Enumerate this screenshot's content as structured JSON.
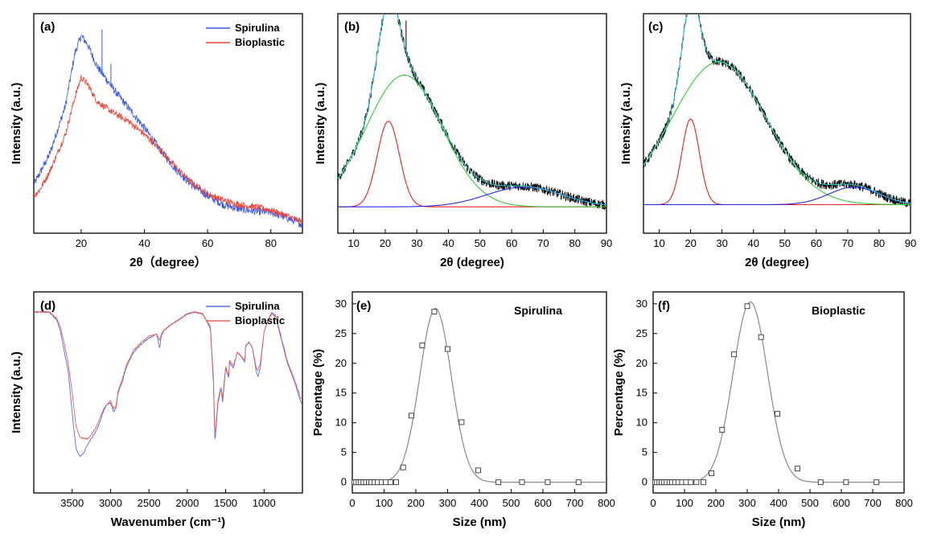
{
  "chart_data": [
    {
      "panel": "(a)",
      "type": "line",
      "xlabel": "2θ（degree）",
      "ylabel": "Intensity (a.u.)",
      "xlim": [
        5,
        90
      ],
      "xticks": [
        20,
        40,
        60,
        80
      ],
      "yticks_shown": false,
      "legend": "top-right",
      "series": [
        {
          "name": "Spirulina",
          "color": "#3a56e8",
          "noise": 0.018,
          "spikes": [
            [
              26.6,
              0.2
            ],
            [
              29.4,
              0.1
            ]
          ],
          "x": [
            5,
            10,
            15,
            18,
            20,
            22,
            25,
            30,
            35,
            40,
            45,
            50,
            55,
            60,
            65,
            70,
            75,
            80,
            85,
            90
          ],
          "y": [
            0.22,
            0.36,
            0.58,
            0.82,
            0.9,
            0.86,
            0.76,
            0.66,
            0.57,
            0.48,
            0.38,
            0.29,
            0.22,
            0.17,
            0.13,
            0.11,
            0.1,
            0.095,
            0.07,
            0.04
          ]
        },
        {
          "name": "Bioplastic",
          "color": "#e8473a",
          "noise": 0.015,
          "spikes": [],
          "x": [
            5,
            7,
            10,
            15,
            18,
            20,
            22,
            25,
            30,
            35,
            40,
            45,
            50,
            55,
            60,
            65,
            70,
            75,
            80,
            85,
            90
          ],
          "y": [
            0.17,
            0.2,
            0.28,
            0.45,
            0.62,
            0.71,
            0.68,
            0.6,
            0.55,
            0.51,
            0.45,
            0.38,
            0.3,
            0.23,
            0.18,
            0.15,
            0.13,
            0.12,
            0.105,
            0.08,
            0.05
          ]
        }
      ]
    },
    {
      "panel": "(b)",
      "type": "line",
      "xlabel": "2θ (degree)",
      "ylabel": "Intensity (a.u.)",
      "xlim": [
        5,
        90
      ],
      "xticks": [
        10,
        20,
        30,
        40,
        50,
        60,
        70,
        80,
        90
      ],
      "yticks_shown": false,
      "baseline": 0.12,
      "experimental": {
        "color": "#000000",
        "noise": 0.022,
        "spikes": [
          [
            26.6,
            0.14
          ]
        ]
      },
      "fit_color": "#2ee8e8",
      "peaks": [
        {
          "color": "#e82020",
          "center": 21,
          "height": 0.39,
          "sigma": 3.5
        },
        {
          "color": "#33cc33",
          "center": 26,
          "height": 0.6,
          "sigma": 12
        },
        {
          "color": "#2626e8",
          "center": 64,
          "height": 0.09,
          "sigma": 12
        }
      ]
    },
    {
      "panel": "(c)",
      "type": "line",
      "xlabel": "2θ (degree)",
      "ylabel": "Intensity (a.u.)",
      "xlim": [
        5,
        90
      ],
      "xticks": [
        10,
        20,
        30,
        40,
        50,
        60,
        70,
        80,
        90
      ],
      "yticks_shown": false,
      "baseline": 0.13,
      "experimental": {
        "color": "#000000",
        "noise": 0.022,
        "spikes": []
      },
      "fit_color": "#2ee8e8",
      "peaks": [
        {
          "color": "#e82020",
          "center": 20,
          "height": 0.39,
          "sigma": 2.8
        },
        {
          "color": "#33cc33",
          "center": 29,
          "height": 0.65,
          "sigma": 15
        },
        {
          "color": "#2626e8",
          "center": 72,
          "height": 0.08,
          "sigma": 8
        }
      ]
    },
    {
      "panel": "(d)",
      "type": "line",
      "xlabel": "Wavenumber (cm⁻¹)",
      "ylabel": "Intensity (a.u.)",
      "xlim": [
        4000,
        500
      ],
      "xticks": [
        3500,
        3000,
        2500,
        2000,
        1500,
        1000
      ],
      "yticks_shown": false,
      "legend": "top-right",
      "series": [
        {
          "name": "Spirulina",
          "color": "#5a6be8",
          "x": [
            4000,
            3800,
            3700,
            3650,
            3600,
            3550,
            3500,
            3450,
            3400,
            3350,
            3300,
            3250,
            3200,
            3150,
            3100,
            3050,
            3000,
            2960,
            2930,
            2900,
            2850,
            2800,
            2700,
            2600,
            2500,
            2400,
            2360,
            2340,
            2300,
            2200,
            2000,
            1900,
            1800,
            1700,
            1660,
            1640,
            1600,
            1560,
            1540,
            1500,
            1460,
            1450,
            1400,
            1350,
            1300,
            1250,
            1240,
            1200,
            1150,
            1100,
            1080,
            1050,
            1000,
            950,
            900,
            850,
            800,
            700,
            600,
            520
          ],
          "y": [
            0.9,
            0.9,
            0.86,
            0.8,
            0.7,
            0.6,
            0.4,
            0.22,
            0.18,
            0.2,
            0.24,
            0.27,
            0.3,
            0.34,
            0.4,
            0.44,
            0.45,
            0.4,
            0.42,
            0.5,
            0.55,
            0.62,
            0.7,
            0.74,
            0.77,
            0.79,
            0.72,
            0.78,
            0.81,
            0.84,
            0.89,
            0.9,
            0.89,
            0.82,
            0.55,
            0.25,
            0.45,
            0.52,
            0.45,
            0.62,
            0.57,
            0.65,
            0.62,
            0.7,
            0.68,
            0.65,
            0.73,
            0.75,
            0.72,
            0.6,
            0.58,
            0.62,
            0.8,
            0.86,
            0.9,
            0.88,
            0.8,
            0.65,
            0.55,
            0.45
          ]
        },
        {
          "name": "Bioplastic",
          "color": "#e86060",
          "x": [
            4000,
            3800,
            3700,
            3650,
            3600,
            3550,
            3500,
            3450,
            3400,
            3350,
            3300,
            3250,
            3200,
            3150,
            3100,
            3050,
            3000,
            2960,
            2930,
            2900,
            2850,
            2800,
            2700,
            2600,
            2500,
            2400,
            2360,
            2340,
            2300,
            2200,
            2000,
            1900,
            1800,
            1700,
            1660,
            1640,
            1600,
            1560,
            1540,
            1500,
            1460,
            1450,
            1400,
            1350,
            1300,
            1250,
            1240,
            1200,
            1150,
            1100,
            1080,
            1050,
            1000,
            950,
            900,
            850,
            800,
            700,
            600,
            520
          ],
          "y": [
            0.9,
            0.9,
            0.87,
            0.82,
            0.74,
            0.64,
            0.5,
            0.33,
            0.28,
            0.27,
            0.27,
            0.29,
            0.32,
            0.36,
            0.41,
            0.44,
            0.46,
            0.42,
            0.43,
            0.51,
            0.56,
            0.63,
            0.71,
            0.75,
            0.78,
            0.79,
            0.76,
            0.79,
            0.81,
            0.84,
            0.89,
            0.9,
            0.89,
            0.83,
            0.58,
            0.28,
            0.46,
            0.53,
            0.47,
            0.63,
            0.58,
            0.66,
            0.63,
            0.7,
            0.68,
            0.66,
            0.73,
            0.75,
            0.72,
            0.62,
            0.61,
            0.64,
            0.8,
            0.86,
            0.89,
            0.88,
            0.81,
            0.66,
            0.56,
            0.47
          ]
        }
      ]
    },
    {
      "panel": "(e)",
      "type": "scatter",
      "title": "Spirulina",
      "xlabel": "Size (nm)",
      "ylabel": "Percentage (%)",
      "xlim": [
        0,
        800
      ],
      "ylim": [
        -1.8,
        32
      ],
      "xticks": [
        0,
        100,
        200,
        300,
        400,
        500,
        600,
        700,
        800
      ],
      "yticks": [
        0,
        5,
        10,
        15,
        20,
        25,
        30
      ],
      "points": {
        "x": [
          5,
          12,
          20,
          27,
          35,
          43,
          52,
          60,
          70,
          80,
          92,
          105,
          120,
          138,
          160,
          186,
          220,
          258,
          300,
          344,
          396,
          460,
          534,
          615,
          712
        ],
        "y": [
          0,
          0,
          0,
          0,
          0,
          0,
          0,
          0,
          0,
          0,
          0,
          0,
          0,
          0,
          2.5,
          11.2,
          23.0,
          28.7,
          22.4,
          10.1,
          2.0,
          0,
          0,
          0,
          0
        ]
      },
      "fit": {
        "center": 262,
        "height": 29.2,
        "sigma": 50,
        "color": "#808080"
      }
    },
    {
      "panel": "(f)",
      "type": "scatter",
      "title": "Bioplastic",
      "xlabel": "Size (nm)",
      "ylabel": "Percentage (%)",
      "xlim": [
        0,
        800
      ],
      "ylim": [
        -1.8,
        32
      ],
      "xticks": [
        0,
        100,
        200,
        300,
        400,
        500,
        600,
        700,
        800
      ],
      "yticks": [
        0,
        5,
        10,
        15,
        20,
        25,
        30
      ],
      "points": {
        "x": [
          5,
          12,
          20,
          27,
          35,
          43,
          52,
          60,
          70,
          80,
          92,
          105,
          120,
          138,
          160,
          186,
          220,
          258,
          300,
          344,
          396,
          460,
          534,
          615,
          712
        ],
        "y": [
          0,
          0,
          0,
          0,
          0,
          0,
          0,
          0,
          0,
          0,
          0,
          0,
          0,
          0,
          0,
          1.5,
          8.8,
          21.5,
          29.6,
          24.4,
          11.5,
          2.3,
          0,
          0,
          0
        ]
      },
      "fit": {
        "center": 310,
        "height": 30.3,
        "sigma": 55,
        "color": "#808080"
      }
    }
  ]
}
